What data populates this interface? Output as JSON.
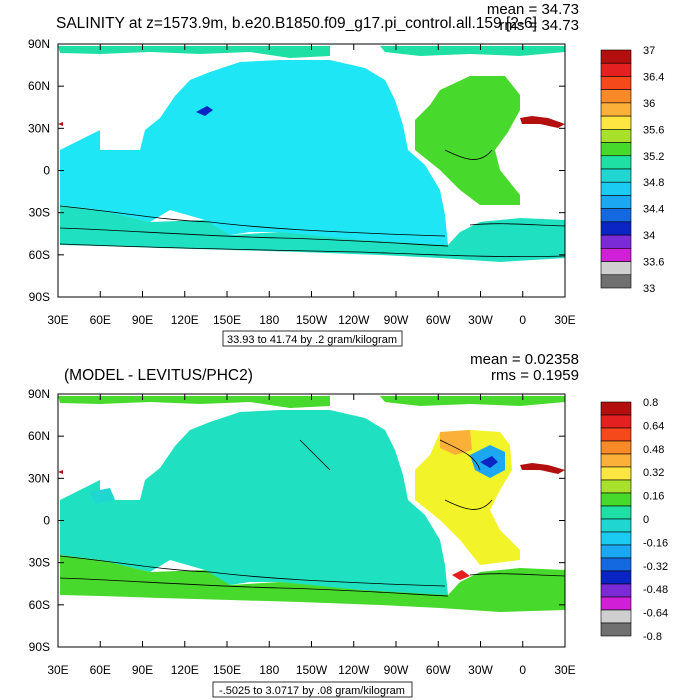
{
  "panels": [
    {
      "id": "top",
      "title": "SALINITY at z=1573.9m, b.e20.B1850.f09_g17.pi_control.all.159 [2-6]",
      "mean_label": "mean = 34.73",
      "rms_label": "rms = 34.73",
      "x_ticks": [
        "30E",
        "60E",
        "90E",
        "120E",
        "150E",
        "180",
        "150W",
        "120W",
        "90W",
        "60W",
        "30W",
        "0",
        "30E"
      ],
      "y_ticks": [
        "90N",
        "60N",
        "30N",
        "0",
        "30S",
        "60S",
        "90S"
      ],
      "colorbar_labels": [
        "37",
        "36.4",
        "36",
        "35.6",
        "35.2",
        "34.8",
        "34.4",
        "34",
        "33.6",
        "33"
      ],
      "colorbar_colors": [
        "#b30f0f",
        "#e52020",
        "#f5491b",
        "#f88b27",
        "#fbb03a",
        "#fde641",
        "#a9e02b",
        "#47d92b",
        "#1fe0a4",
        "#1fd6d0",
        "#1ccbf2",
        "#1ca7f2",
        "#1569e0",
        "#0b25c4",
        "#7b2bd6",
        "#d01fd6",
        "#cfcfcf",
        "#707070"
      ],
      "range_label": "33.93 to 41.74 by .2 gram/kilogram"
    },
    {
      "id": "bottom",
      "title": "(MODEL - LEVITUS/PHC2)",
      "mean_label": "mean = 0.02358",
      "rms_label": "rms = 0.1959",
      "x_ticks": [
        "30E",
        "60E",
        "90E",
        "120E",
        "150E",
        "180",
        "150W",
        "120W",
        "90W",
        "60W",
        "30W",
        "0",
        "30E"
      ],
      "y_ticks": [
        "90N",
        "60N",
        "30N",
        "0",
        "30S",
        "60S",
        "90S"
      ],
      "colorbar_labels": [
        "0.8",
        "0.64",
        "0.48",
        "0.32",
        "0.16",
        "0",
        "-0.16",
        "-0.32",
        "-0.48",
        "-0.64",
        "-0.8"
      ],
      "colorbar_colors": [
        "#b30f0f",
        "#e52020",
        "#f5491b",
        "#f88b27",
        "#fbb03a",
        "#fde641",
        "#a9e02b",
        "#47d92b",
        "#1fe0a4",
        "#1fd6d0",
        "#1ccbf2",
        "#1ca7f2",
        "#1569e0",
        "#0b25c4",
        "#7b2bd6",
        "#d01fd6",
        "#cfcfcf",
        "#707070"
      ],
      "range_label": "-.5025 to 3.0717 by .08 gram/kilogram"
    }
  ],
  "colors": {
    "top_main": "#1ee6f5",
    "top_north_atlantic": "#47d92b",
    "top_southern": "#1fe0c0",
    "bottom_main": "#1fe0c0",
    "bottom_north_atlantic": "#f3f32a",
    "bottom_southern": "#47d92b"
  }
}
